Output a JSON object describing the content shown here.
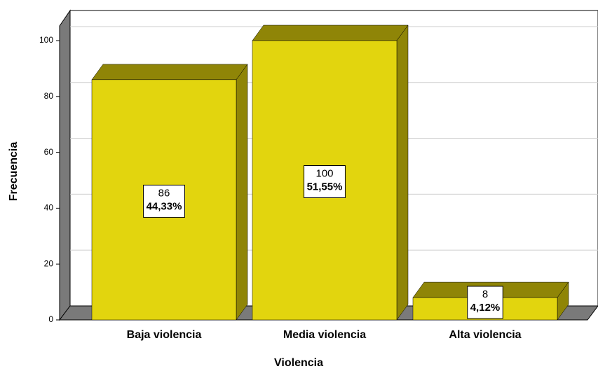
{
  "chart_data": {
    "type": "bar3d",
    "x_label": "Violencia",
    "y_label": "Frecuencia",
    "categories": [
      "Baja violencia",
      "Media violencia",
      "Alta violencia"
    ],
    "values": [
      86,
      100,
      8
    ],
    "percent_labels": [
      "44,33%",
      "51,55%",
      "4,12%"
    ],
    "color": "#e2d50e",
    "side_color": "#8f8507",
    "ylim": [
      0,
      100
    ],
    "yticks": [
      0,
      20,
      40,
      60,
      80,
      100
    ],
    "grid": true
  }
}
